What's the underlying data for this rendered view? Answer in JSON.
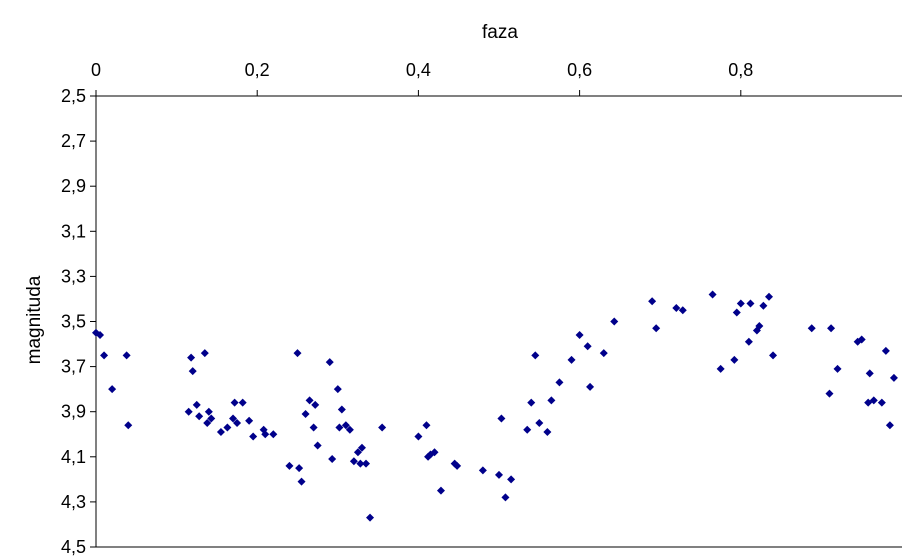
{
  "chart_data": {
    "type": "scatter",
    "xlabel": "faza",
    "ylabel": "magnituda",
    "x_axis_position": "top",
    "y_axis_inverted": true,
    "xlim": [
      0,
      1
    ],
    "ylim": [
      2.5,
      4.5
    ],
    "x_ticks": [
      0,
      0.2,
      0.4,
      0.6,
      0.8
    ],
    "x_tick_labels": [
      "0",
      "0,2",
      "0,4",
      "0,6",
      "0,8"
    ],
    "y_ticks": [
      2.5,
      2.7,
      2.9,
      3.1,
      3.3,
      3.5,
      3.7,
      3.9,
      4.1,
      4.3,
      4.5
    ],
    "y_tick_labels": [
      "2,5",
      "2,7",
      "2,9",
      "3,1",
      "3,3",
      "3,5",
      "3,7",
      "3,9",
      "4,1",
      "4,3",
      "4,5"
    ],
    "grid": false,
    "legend": "none",
    "marker_color": "#00008B",
    "marker": "diamond",
    "x": [
      0.0,
      0.005,
      0.01,
      0.02,
      0.038,
      0.04,
      0.115,
      0.118,
      0.12,
      0.125,
      0.128,
      0.135,
      0.138,
      0.14,
      0.143,
      0.155,
      0.163,
      0.17,
      0.172,
      0.175,
      0.182,
      0.19,
      0.195,
      0.208,
      0.21,
      0.22,
      0.24,
      0.25,
      0.252,
      0.255,
      0.26,
      0.265,
      0.27,
      0.272,
      0.275,
      0.29,
      0.293,
      0.3,
      0.302,
      0.305,
      0.31,
      0.315,
      0.32,
      0.325,
      0.328,
      0.33,
      0.335,
      0.34,
      0.355,
      0.4,
      0.41,
      0.412,
      0.415,
      0.42,
      0.428,
      0.445,
      0.448,
      0.48,
      0.5,
      0.503,
      0.508,
      0.515,
      0.535,
      0.54,
      0.545,
      0.55,
      0.56,
      0.565,
      0.575,
      0.59,
      0.6,
      0.61,
      0.613,
      0.63,
      0.643,
      0.69,
      0.695,
      0.72,
      0.728,
      0.765,
      0.775,
      0.792,
      0.795,
      0.8,
      0.81,
      0.812,
      0.82,
      0.823,
      0.828,
      0.835,
      0.84,
      0.888,
      0.91,
      0.912,
      0.92,
      0.945,
      0.95,
      0.958,
      0.96,
      0.965,
      0.975,
      0.98,
      0.985,
      0.99
    ],
    "y": [
      3.55,
      3.56,
      3.65,
      3.8,
      3.65,
      3.96,
      3.9,
      3.66,
      3.72,
      3.87,
      3.92,
      3.64,
      3.95,
      3.9,
      3.93,
      3.99,
      3.97,
      3.93,
      3.86,
      3.95,
      3.86,
      3.94,
      4.01,
      3.98,
      4.0,
      4.0,
      4.14,
      3.64,
      4.15,
      4.21,
      3.91,
      3.85,
      3.97,
      3.87,
      4.05,
      3.68,
      4.11,
      3.8,
      3.97,
      3.89,
      3.96,
      3.98,
      4.12,
      4.08,
      4.13,
      4.06,
      4.13,
      4.37,
      3.97,
      4.01,
      3.96,
      4.1,
      4.09,
      4.08,
      4.25,
      4.13,
      4.14,
      4.16,
      4.18,
      3.93,
      4.28,
      4.2,
      3.98,
      3.86,
      3.65,
      3.95,
      3.99,
      3.85,
      3.77,
      3.67,
      3.56,
      3.61,
      3.79,
      3.64,
      3.5,
      3.41,
      3.53,
      3.44,
      3.45,
      3.38,
      3.71,
      3.67,
      3.46,
      3.42,
      3.59,
      3.42,
      3.54,
      3.52,
      3.43,
      3.39,
      3.65,
      3.53,
      3.82,
      3.53,
      3.71,
      3.59,
      3.58,
      3.86,
      3.73,
      3.85,
      3.86,
      3.63,
      3.96,
      3.75
    ]
  }
}
